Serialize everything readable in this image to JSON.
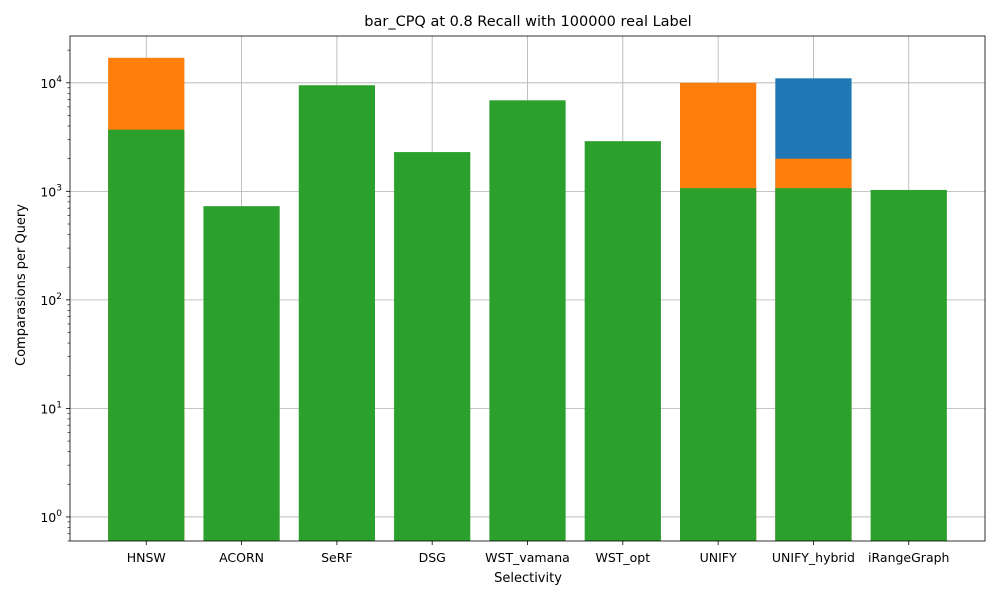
{
  "chart_data": {
    "type": "bar",
    "title": "bar_CPQ at 0.8 Recall with 100000 real Label",
    "xlabel": "Selectivity",
    "ylabel": "Comparasions per Query",
    "yscale": "log",
    "ylim": [
      0.6,
      27000
    ],
    "grid": true,
    "categories": [
      "HNSW",
      "ACORN",
      "SeRF",
      "DSG",
      "WST_vamana",
      "WST_opt",
      "UNIFY",
      "UNIFY_hybrid",
      "iRangeGraph"
    ],
    "y_ticks": [
      {
        "value": 1,
        "base": "10",
        "exp": "0"
      },
      {
        "value": 10,
        "base": "10",
        "exp": "1"
      },
      {
        "value": 100,
        "base": "10",
        "exp": "2"
      },
      {
        "value": 1000,
        "base": "10",
        "exp": "3"
      },
      {
        "value": 10000,
        "base": "10",
        "exp": "4"
      }
    ],
    "series": [
      {
        "color": "#1f77b4",
        "values": [
          null,
          null,
          null,
          null,
          null,
          null,
          null,
          11000,
          null
        ]
      },
      {
        "color": "#ff7f0e",
        "values": [
          17000,
          null,
          null,
          null,
          null,
          null,
          10000,
          2000,
          null
        ]
      },
      {
        "color": "#2ca02c",
        "values": [
          3700,
          730,
          9500,
          2300,
          6900,
          2900,
          1070,
          1070,
          1030
        ]
      }
    ]
  }
}
